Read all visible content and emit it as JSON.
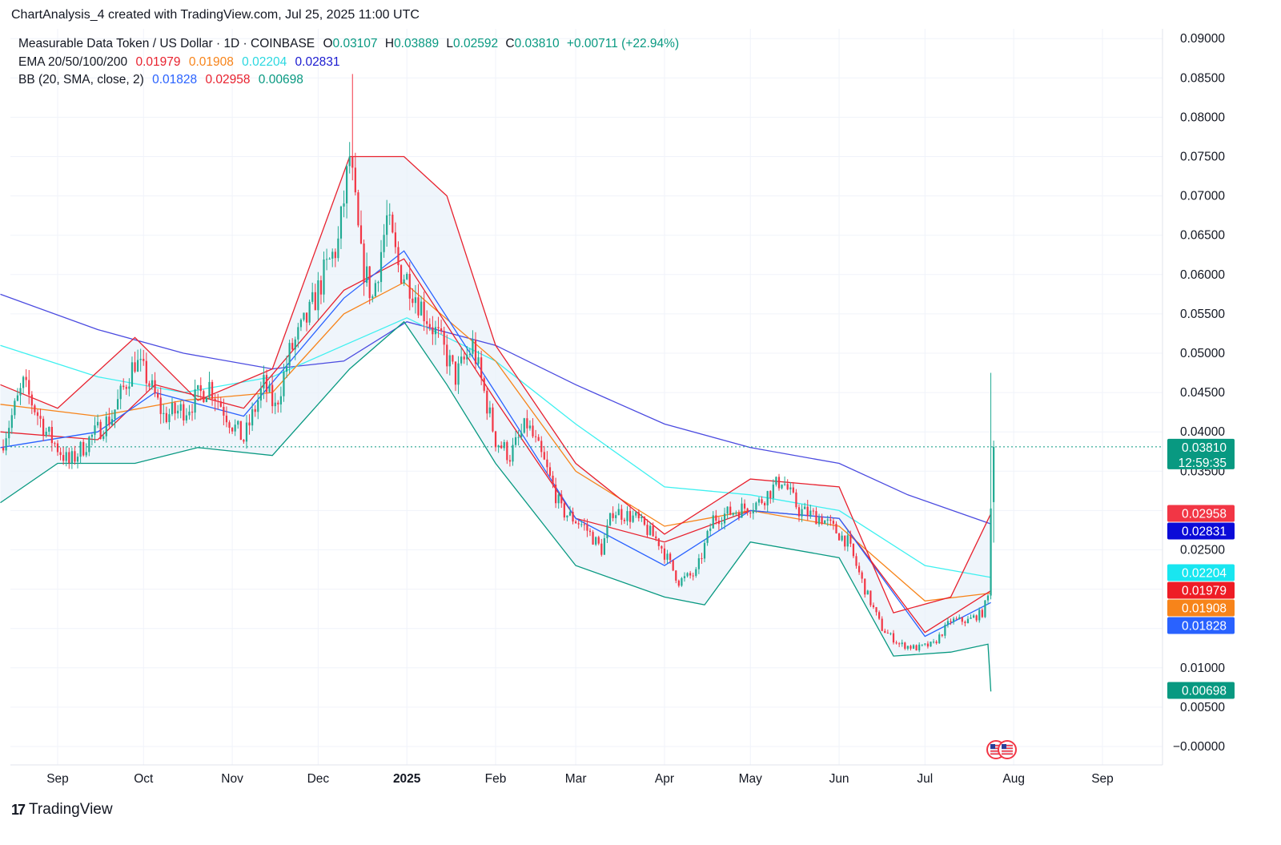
{
  "caption": "ChartAnalysis_4 created with TradingView.com, Jul 25, 2025 11:00 UTC",
  "footer": {
    "brand": "TradingView",
    "mark": "17"
  },
  "legend": {
    "symbol": "Measurable Data Token / US Dollar · 1D · COINBASE",
    "o_label": "O",
    "o_value": "0.03107",
    "h_label": "H",
    "h_value": "0.03889",
    "l_label": "L",
    "l_value": "0.02592",
    "c_label": "C",
    "c_value": "0.03810",
    "change": "+0.00711 (+22.94%)",
    "ema_label": "EMA 20/50/100/200",
    "ema20": "0.01979",
    "ema50": "0.01908",
    "ema100": "0.02204",
    "ema200": "0.02831",
    "bb_label": "BB (20, SMA, close, 2)",
    "bb_basis": "0.01828",
    "bb_upper": "0.02958",
    "bb_lower": "0.00698"
  },
  "colors": {
    "up": "#22ab94",
    "down": "#f23645",
    "ema20": "#e8212e",
    "ema50": "#f7841a",
    "ema100": "#3ef0f0",
    "ema200": "#4b4be0",
    "bb_basis": "#2962ff",
    "bb_upper": "#e8212e",
    "bb_lower": "#089981",
    "bb_fill": "#e9f1fa"
  },
  "chart_data": {
    "type": "candlestick",
    "title": "Measurable Data Token / US Dollar · 1D · COINBASE",
    "y_ticks": [
      "0.09000",
      "0.08500",
      "0.08000",
      "0.07500",
      "0.07000",
      "0.06500",
      "0.06000",
      "0.05500",
      "0.05000",
      "0.04500",
      "0.04000",
      "0.03500",
      "0.02500",
      "0.01000",
      "0.00500",
      "−0.00000"
    ],
    "y_tick_values": [
      0.09,
      0.085,
      0.08,
      0.075,
      0.07,
      0.065,
      0.06,
      0.055,
      0.05,
      0.045,
      0.04,
      0.035,
      0.025,
      0.01,
      0.005,
      0.0
    ],
    "ylim": [
      0.0,
      0.09
    ],
    "x_ticks": [
      {
        "label": "Sep",
        "date": "2024-09-01",
        "bold": false
      },
      {
        "label": "Oct",
        "date": "2024-10-01",
        "bold": false
      },
      {
        "label": "Nov",
        "date": "2024-11-01",
        "bold": false
      },
      {
        "label": "Dec",
        "date": "2024-12-01",
        "bold": false
      },
      {
        "label": "2025",
        "date": "2025-01-01",
        "bold": true
      },
      {
        "label": "Feb",
        "date": "2025-02-01",
        "bold": false
      },
      {
        "label": "Mar",
        "date": "2025-03-01",
        "bold": false
      },
      {
        "label": "Apr",
        "date": "2025-04-01",
        "bold": false
      },
      {
        "label": "May",
        "date": "2025-05-01",
        "bold": false
      },
      {
        "label": "Jun",
        "date": "2025-06-01",
        "bold": false
      },
      {
        "label": "Jul",
        "date": "2025-07-01",
        "bold": false
      },
      {
        "label": "Aug",
        "date": "2025-08-01",
        "bold": false
      },
      {
        "label": "Sep",
        "date": "2025-09-01",
        "bold": false
      }
    ],
    "x_range": [
      "2024-08-12",
      "2025-09-30"
    ],
    "grid": true,
    "last_price": {
      "value": 0.0381,
      "label": "0.03810",
      "countdown": "12:59:35"
    },
    "price_labels": [
      {
        "name": "bb-upper",
        "label": "0.02958",
        "value": 0.02958,
        "color": "#f23645"
      },
      {
        "name": "ema-200",
        "label": "0.02831",
        "value": 0.02831,
        "color": "#0b0bd8"
      },
      {
        "name": "ema-100",
        "label": "0.02204",
        "value": 0.02204,
        "color": "#19e6f0"
      },
      {
        "name": "ema-20",
        "label": "0.01979",
        "value": 0.01979,
        "color": "#ee1c25"
      },
      {
        "name": "ema-50",
        "label": "0.01908",
        "value": 0.01908,
        "color": "#f7841a"
      },
      {
        "name": "bb-basis",
        "label": "0.01828",
        "value": 0.01828,
        "color": "#2962ff"
      },
      {
        "name": "bb-lower",
        "label": "0.00698",
        "value": 0.00698,
        "color": "#089981"
      }
    ],
    "price_path": [
      [
        "2024-08-12",
        0.038
      ],
      [
        "2024-08-20",
        0.046
      ],
      [
        "2024-08-28",
        0.04
      ],
      [
        "2024-09-05",
        0.036
      ],
      [
        "2024-09-12",
        0.039
      ],
      [
        "2024-09-20",
        0.042
      ],
      [
        "2024-09-28",
        0.049
      ],
      [
        "2024-10-02",
        0.047
      ],
      [
        "2024-10-08",
        0.042
      ],
      [
        "2024-10-16",
        0.043
      ],
      [
        "2024-10-24",
        0.046
      ],
      [
        "2024-11-01",
        0.041
      ],
      [
        "2024-11-05",
        0.039
      ],
      [
        "2024-11-12",
        0.046
      ],
      [
        "2024-11-16",
        0.043
      ],
      [
        "2024-11-21",
        0.05
      ],
      [
        "2024-11-28",
        0.055
      ],
      [
        "2024-12-03",
        0.06
      ],
      [
        "2024-12-08",
        0.064
      ],
      [
        "2024-12-12",
        0.075
      ],
      [
        "2024-12-16",
        0.062
      ],
      [
        "2024-12-20",
        0.057
      ],
      [
        "2024-12-25",
        0.067
      ],
      [
        "2024-12-29",
        0.061
      ],
      [
        "2025-01-02",
        0.059
      ],
      [
        "2025-01-06",
        0.056
      ],
      [
        "2025-01-12",
        0.052
      ],
      [
        "2025-01-18",
        0.047
      ],
      [
        "2025-01-24",
        0.051
      ],
      [
        "2025-02-01",
        0.039
      ],
      [
        "2025-02-06",
        0.037
      ],
      [
        "2025-02-12",
        0.041
      ],
      [
        "2025-02-18",
        0.036
      ],
      [
        "2025-02-24",
        0.03
      ],
      [
        "2025-03-04",
        0.028
      ],
      [
        "2025-03-10",
        0.025
      ],
      [
        "2025-03-14",
        0.03
      ],
      [
        "2025-03-22",
        0.029
      ],
      [
        "2025-03-30",
        0.026
      ],
      [
        "2025-04-06",
        0.021
      ],
      [
        "2025-04-12",
        0.022
      ],
      [
        "2025-04-18",
        0.029
      ],
      [
        "2025-04-26",
        0.03
      ],
      [
        "2025-05-04",
        0.031
      ],
      [
        "2025-05-12",
        0.034
      ],
      [
        "2025-05-18",
        0.03
      ],
      [
        "2025-05-26",
        0.029
      ],
      [
        "2025-06-04",
        0.026
      ],
      [
        "2025-06-10",
        0.02
      ],
      [
        "2025-06-16",
        0.015
      ],
      [
        "2025-06-22",
        0.013
      ],
      [
        "2025-06-28",
        0.0125
      ],
      [
        "2025-07-04",
        0.013
      ],
      [
        "2025-07-10",
        0.016
      ],
      [
        "2025-07-16",
        0.016
      ],
      [
        "2025-07-21",
        0.017
      ],
      [
        "2025-07-23",
        0.019
      ],
      [
        "2025-07-24",
        0.031
      ],
      [
        "2025-07-25",
        0.0381
      ]
    ],
    "overlays": [
      {
        "name": "EMA 200",
        "color": "#4b4be0",
        "points": [
          [
            "2024-08-12",
            0.0575
          ],
          [
            "2024-09-15",
            0.053
          ],
          [
            "2024-10-15",
            0.05
          ],
          [
            "2024-11-15",
            0.048
          ],
          [
            "2024-12-10",
            0.049
          ],
          [
            "2025-01-01",
            0.054
          ],
          [
            "2025-02-01",
            0.051
          ],
          [
            "2025-03-01",
            0.046
          ],
          [
            "2025-04-01",
            0.041
          ],
          [
            "2025-05-01",
            0.038
          ],
          [
            "2025-06-01",
            0.036
          ],
          [
            "2025-06-25",
            0.032
          ],
          [
            "2025-07-24",
            0.0283
          ]
        ]
      },
      {
        "name": "EMA 100",
        "color": "#3ef0f0",
        "points": [
          [
            "2024-08-12",
            0.051
          ],
          [
            "2024-09-15",
            0.047
          ],
          [
            "2024-10-15",
            0.045
          ],
          [
            "2024-11-15",
            0.047
          ],
          [
            "2024-12-10",
            0.051
          ],
          [
            "2025-01-01",
            0.0545
          ],
          [
            "2025-02-01",
            0.049
          ],
          [
            "2025-03-01",
            0.041
          ],
          [
            "2025-04-01",
            0.033
          ],
          [
            "2025-05-01",
            0.032
          ],
          [
            "2025-06-01",
            0.03
          ],
          [
            "2025-07-01",
            0.023
          ],
          [
            "2025-07-24",
            0.0215
          ]
        ]
      },
      {
        "name": "EMA 50",
        "color": "#f7841a",
        "points": [
          [
            "2024-08-12",
            0.0435
          ],
          [
            "2024-09-15",
            0.042
          ],
          [
            "2024-10-15",
            0.044
          ],
          [
            "2024-11-15",
            0.045
          ],
          [
            "2024-12-10",
            0.055
          ],
          [
            "2024-12-31",
            0.059
          ],
          [
            "2025-02-01",
            0.049
          ],
          [
            "2025-03-01",
            0.035
          ],
          [
            "2025-04-01",
            0.028
          ],
          [
            "2025-05-01",
            0.03
          ],
          [
            "2025-06-01",
            0.028
          ],
          [
            "2025-07-01",
            0.0185
          ],
          [
            "2025-07-24",
            0.0195
          ]
        ]
      },
      {
        "name": "EMA 20",
        "color": "#e8212e",
        "points": [
          [
            "2024-08-12",
            0.04
          ],
          [
            "2024-09-15",
            0.039
          ],
          [
            "2024-10-05",
            0.046
          ],
          [
            "2024-11-05",
            0.043
          ],
          [
            "2024-12-10",
            0.058
          ],
          [
            "2024-12-31",
            0.062
          ],
          [
            "2025-02-01",
            0.044
          ],
          [
            "2025-03-01",
            0.029
          ],
          [
            "2025-04-01",
            0.026
          ],
          [
            "2025-05-01",
            0.03
          ],
          [
            "2025-06-01",
            0.029
          ],
          [
            "2025-07-01",
            0.0145
          ],
          [
            "2025-07-24",
            0.0198
          ]
        ]
      },
      {
        "name": "BB Basis",
        "color": "#2962ff",
        "points": [
          [
            "2024-08-12",
            0.038
          ],
          [
            "2024-09-15",
            0.04
          ],
          [
            "2024-10-05",
            0.045
          ],
          [
            "2024-11-05",
            0.042
          ],
          [
            "2024-12-10",
            0.057
          ],
          [
            "2024-12-31",
            0.063
          ],
          [
            "2025-02-01",
            0.045
          ],
          [
            "2025-03-01",
            0.029
          ],
          [
            "2025-04-01",
            0.023
          ],
          [
            "2025-05-01",
            0.03
          ],
          [
            "2025-06-01",
            0.029
          ],
          [
            "2025-07-01",
            0.014
          ],
          [
            "2025-07-24",
            0.0183
          ]
        ]
      },
      {
        "name": "BB Upper",
        "color": "#e8212e",
        "points": [
          [
            "2024-08-12",
            0.046
          ],
          [
            "2024-09-01",
            0.043
          ],
          [
            "2024-09-28",
            0.052
          ],
          [
            "2024-10-20",
            0.044
          ],
          [
            "2024-11-15",
            0.048
          ],
          [
            "2024-12-12",
            0.075
          ],
          [
            "2024-12-31",
            0.075
          ],
          [
            "2025-01-15",
            0.07
          ],
          [
            "2025-02-01",
            0.051
          ],
          [
            "2025-03-01",
            0.036
          ],
          [
            "2025-04-01",
            0.027
          ],
          [
            "2025-05-01",
            0.034
          ],
          [
            "2025-06-01",
            0.033
          ],
          [
            "2025-06-20",
            0.017
          ],
          [
            "2025-07-10",
            0.019
          ],
          [
            "2025-07-24",
            0.0296
          ]
        ]
      },
      {
        "name": "BB Lower",
        "color": "#089981",
        "points": [
          [
            "2024-08-12",
            0.031
          ],
          [
            "2024-09-01",
            0.036
          ],
          [
            "2024-09-28",
            0.036
          ],
          [
            "2024-10-20",
            0.038
          ],
          [
            "2024-11-15",
            0.037
          ],
          [
            "2024-12-12",
            0.048
          ],
          [
            "2024-12-31",
            0.054
          ],
          [
            "2025-01-15",
            0.046
          ],
          [
            "2025-02-01",
            0.036
          ],
          [
            "2025-03-01",
            0.023
          ],
          [
            "2025-04-01",
            0.019
          ],
          [
            "2025-04-15",
            0.018
          ],
          [
            "2025-05-01",
            0.026
          ],
          [
            "2025-06-01",
            0.024
          ],
          [
            "2025-06-20",
            0.0115
          ],
          [
            "2025-07-10",
            0.012
          ],
          [
            "2025-07-23",
            0.013
          ],
          [
            "2025-07-24",
            0.007
          ]
        ]
      }
    ]
  }
}
